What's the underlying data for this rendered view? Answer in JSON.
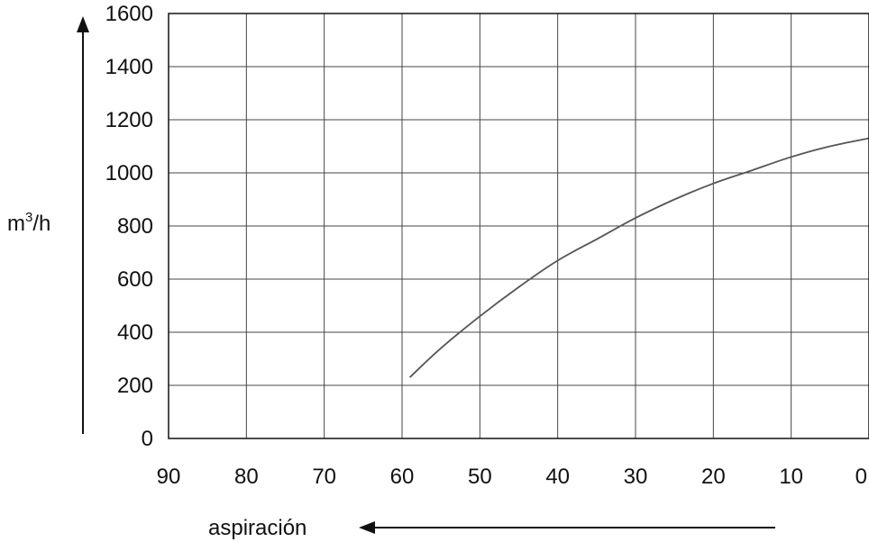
{
  "chart_data": {
    "type": "line",
    "title": "",
    "ylabel": "m",
    "ylabel_sup": "3",
    "ylabel_suffix": "/h",
    "xlabel": "aspiración",
    "x_reversed": true,
    "xlim": [
      0,
      90
    ],
    "ylim": [
      0,
      1600
    ],
    "grid": true,
    "x_ticks": [
      90,
      80,
      70,
      60,
      50,
      40,
      30,
      20,
      10,
      0
    ],
    "y_ticks": [
      0,
      200,
      400,
      600,
      800,
      1000,
      1200,
      1400,
      1600
    ],
    "series": [
      {
        "x": [
          59,
          55,
          50,
          45,
          40,
          35,
          30,
          25,
          20,
          15,
          10,
          5,
          0
        ],
        "y": [
          230,
          340,
          460,
          570,
          670,
          750,
          830,
          900,
          960,
          1010,
          1060,
          1100,
          1130
        ],
        "color": "#555555"
      }
    ]
  }
}
